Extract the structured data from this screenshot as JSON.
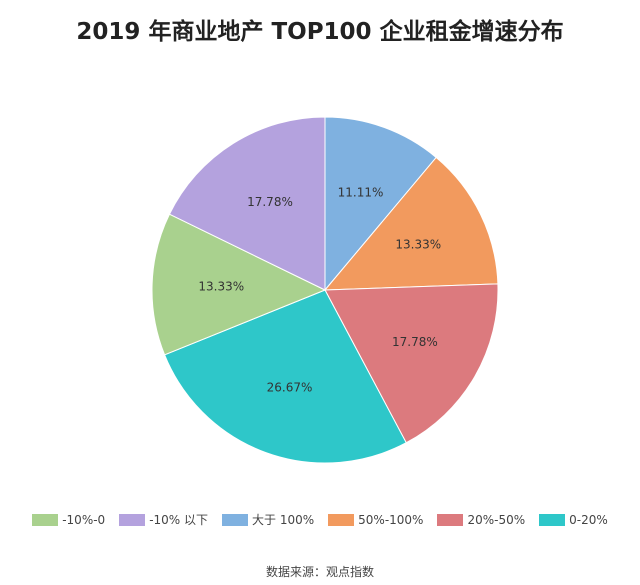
{
  "chart_data": {
    "type": "pie",
    "title": "2019 年商业地产 TOP100 企业租金增速分布",
    "slices": [
      {
        "label": "大于 100%",
        "value": 11.11,
        "display": "11.11%",
        "color": "#7fb1e0"
      },
      {
        "label": "50%-100%",
        "value": 13.33,
        "display": "13.33%",
        "color": "#f29a5e"
      },
      {
        "label": "20%-50%",
        "value": 17.78,
        "display": "17.78%",
        "color": "#dc7a7e"
      },
      {
        "label": "0-20%",
        "value": 26.67,
        "display": "26.67%",
        "color": "#2ec7c9"
      },
      {
        "label": "-10%-0",
        "value": 13.33,
        "display": "13.33%",
        "color": "#a9d18e"
      },
      {
        "label": "-10% 以下",
        "value": 17.78,
        "display": "17.78%",
        "color": "#b4a2de"
      }
    ],
    "start": "12 o'clock, clockwise",
    "legend_order": [
      "-10%-0",
      "-10% 以下",
      "大于 100%",
      "50%-100%",
      "20%-50%",
      "0-20%"
    ],
    "legend_placement": "bottom"
  },
  "source": "数据来源：观点指数"
}
